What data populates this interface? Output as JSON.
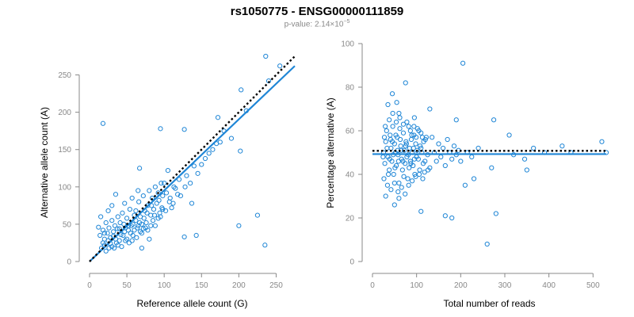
{
  "header": {
    "title": "rs1050775 - ENSG00000111859",
    "pvalue_prefix": "p-value: 2.14×10",
    "pvalue_exponent": "−5"
  },
  "colors": {
    "points": "#1f86d6",
    "fit": "#1f86d6",
    "reference": "#000000",
    "axes": "#888888"
  },
  "chart_data": [
    {
      "type": "scatter",
      "xlabel": "Reference allele count (G)",
      "ylabel": "Alternative allele count (A)",
      "xlim": [
        0,
        275
      ],
      "ylim": [
        0,
        275
      ],
      "xticks": [
        0,
        50,
        100,
        150,
        200,
        250
      ],
      "yticks": [
        0,
        50,
        100,
        150,
        200,
        250
      ],
      "fit_line": {
        "style": "solid",
        "x": [
          0,
          275
        ],
        "y": [
          0,
          262
        ]
      },
      "reference_line": {
        "style": "dotted",
        "x": [
          0,
          275
        ],
        "y": [
          0,
          275
        ]
      },
      "points": [
        [
          18,
          185
        ],
        [
          95,
          178
        ],
        [
          127,
          177
        ],
        [
          172,
          193
        ],
        [
          190,
          165
        ],
        [
          203,
          230
        ],
        [
          210,
          202
        ],
        [
          202,
          148
        ],
        [
          225,
          62
        ],
        [
          200,
          48
        ],
        [
          235,
          22
        ],
        [
          143,
          35
        ],
        [
          127,
          33
        ],
        [
          137,
          78
        ],
        [
          105,
          122
        ],
        [
          67,
          125
        ],
        [
          100,
          105
        ],
        [
          145,
          118
        ],
        [
          110,
          72
        ],
        [
          80,
          30
        ],
        [
          70,
          18
        ],
        [
          236,
          275
        ],
        [
          240,
          242
        ],
        [
          255,
          262
        ],
        [
          15,
          60
        ],
        [
          12,
          46
        ],
        [
          14,
          35
        ],
        [
          18,
          42
        ],
        [
          20,
          30
        ],
        [
          22,
          52
        ],
        [
          24,
          38
        ],
        [
          26,
          45
        ],
        [
          28,
          32
        ],
        [
          30,
          55
        ],
        [
          32,
          40
        ],
        [
          34,
          48
        ],
        [
          36,
          25
        ],
        [
          38,
          60
        ],
        [
          40,
          44
        ],
        [
          42,
          36
        ],
        [
          44,
          65
        ],
        [
          46,
          50
        ],
        [
          48,
          28
        ],
        [
          50,
          58
        ],
        [
          52,
          42
        ],
        [
          54,
          70
        ],
        [
          56,
          48
        ],
        [
          58,
          35
        ],
        [
          60,
          62
        ],
        [
          62,
          55
        ],
        [
          64,
          45
        ],
        [
          66,
          80
        ],
        [
          68,
          60
        ],
        [
          70,
          50
        ],
        [
          72,
          88
        ],
        [
          74,
          68
        ],
        [
          76,
          52
        ],
        [
          78,
          75
        ],
        [
          80,
          95
        ],
        [
          82,
          62
        ],
        [
          84,
          85
        ],
        [
          86,
          70
        ],
        [
          88,
          100
        ],
        [
          90,
          78
        ],
        [
          92,
          92
        ],
        [
          94,
          65
        ],
        [
          96,
          105
        ],
        [
          98,
          88
        ],
        [
          20,
          22
        ],
        [
          25,
          28
        ],
        [
          30,
          20
        ],
        [
          35,
          30
        ],
        [
          40,
          28
        ],
        [
          45,
          35
        ],
        [
          50,
          30
        ],
        [
          55,
          38
        ],
        [
          60,
          42
        ],
        [
          65,
          48
        ],
        [
          70,
          38
        ],
        [
          75,
          45
        ],
        [
          85,
          55
        ],
        [
          95,
          60
        ],
        [
          115,
          98
        ],
        [
          120,
          110
        ],
        [
          130,
          115
        ],
        [
          140,
          128
        ],
        [
          150,
          130
        ],
        [
          160,
          145
        ],
        [
          170,
          158
        ],
        [
          180,
          175
        ],
        [
          16,
          18
        ],
        [
          22,
          14
        ],
        [
          28,
          24
        ],
        [
          33,
          18
        ],
        [
          38,
          22
        ],
        [
          43,
          20
        ],
        [
          48,
          45
        ],
        [
          53,
          25
        ],
        [
          58,
          50
        ],
        [
          63,
          32
        ],
        [
          68,
          40
        ],
        [
          73,
          58
        ],
        [
          78,
          42
        ],
        [
          83,
          75
        ],
        [
          88,
          48
        ],
        [
          93,
          82
        ],
        [
          98,
          70
        ],
        [
          103,
          92
        ],
        [
          108,
          85
        ],
        [
          113,
          100
        ],
        [
          35,
          90
        ],
        [
          47,
          78
        ],
        [
          57,
          85
        ],
        [
          65,
          95
        ],
        [
          25,
          68
        ],
        [
          30,
          75
        ],
        [
          18,
          25
        ],
        [
          20,
          38
        ],
        [
          26,
          18
        ],
        [
          32,
          34
        ],
        [
          37,
          44
        ],
        [
          41,
          52
        ],
        [
          47,
          40
        ],
        [
          52,
          48
        ],
        [
          57,
          28
        ],
        [
          62,
          68
        ],
        [
          67,
          52
        ],
        [
          72,
          44
        ],
        [
          77,
          65
        ],
        [
          82,
          48
        ],
        [
          87,
          62
        ],
        [
          92,
          58
        ],
        [
          97,
          72
        ],
        [
          102,
          68
        ],
        [
          107,
          80
        ],
        [
          112,
          78
        ],
        [
          118,
          90
        ],
        [
          122,
          88
        ],
        [
          128,
          100
        ],
        [
          135,
          105
        ],
        [
          155,
          138
        ],
        [
          165,
          150
        ],
        [
          175,
          160
        ]
      ]
    },
    {
      "type": "scatter",
      "xlabel": "Total number of reads",
      "ylabel": "Percentage alternative (A)",
      "xlim": [
        0,
        530
      ],
      "ylim": [
        0,
        100
      ],
      "xticks": [
        0,
        100,
        200,
        300,
        400,
        500
      ],
      "yticks": [
        0,
        20,
        40,
        60,
        80,
        100
      ],
      "fit_line": {
        "style": "solid",
        "x": [
          0,
          530
        ],
        "y": [
          49.3,
          49.3
        ]
      },
      "reference_line": {
        "style": "dotted",
        "x": [
          0,
          530
        ],
        "y": [
          50.8,
          50.8
        ]
      },
      "points": [
        [
          205,
          91
        ],
        [
          75,
          82
        ],
        [
          45,
          77
        ],
        [
          35,
          72
        ],
        [
          55,
          73
        ],
        [
          130,
          70
        ],
        [
          275,
          65
        ],
        [
          190,
          65
        ],
        [
          60,
          68
        ],
        [
          95,
          66
        ],
        [
          310,
          58
        ],
        [
          50,
          26
        ],
        [
          60,
          29
        ],
        [
          110,
          23
        ],
        [
          165,
          21
        ],
        [
          180,
          20
        ],
        [
          210,
          35
        ],
        [
          230,
          38
        ],
        [
          260,
          8
        ],
        [
          280,
          22
        ],
        [
          270,
          43
        ],
        [
          350,
          42
        ],
        [
          365,
          52
        ],
        [
          390,
          50
        ],
        [
          430,
          53
        ],
        [
          450,
          50
        ],
        [
          520,
          55
        ],
        [
          530,
          50
        ],
        [
          345,
          47
        ],
        [
          320,
          49
        ],
        [
          25,
          50
        ],
        [
          28,
          45
        ],
        [
          30,
          55
        ],
        [
          32,
          60
        ],
        [
          35,
          48
        ],
        [
          38,
          42
        ],
        [
          40,
          58
        ],
        [
          42,
          52
        ],
        [
          44,
          46
        ],
        [
          46,
          62
        ],
        [
          48,
          40
        ],
        [
          50,
          54
        ],
        [
          52,
          50
        ],
        [
          54,
          44
        ],
        [
          56,
          57
        ],
        [
          58,
          49
        ],
        [
          60,
          36
        ],
        [
          62,
          61
        ],
        [
          64,
          53
        ],
        [
          66,
          47
        ],
        [
          68,
          42
        ],
        [
          70,
          59
        ],
        [
          72,
          51
        ],
        [
          74,
          45
        ],
        [
          76,
          55
        ],
        [
          78,
          48
        ],
        [
          80,
          38
        ],
        [
          82,
          62
        ],
        [
          84,
          52
        ],
        [
          86,
          46
        ],
        [
          88,
          56
        ],
        [
          90,
          50
        ],
        [
          92,
          44
        ],
        [
          94,
          58
        ],
        [
          96,
          40
        ],
        [
          98,
          54
        ],
        [
          100,
          48
        ],
        [
          105,
          60
        ],
        [
          110,
          52
        ],
        [
          115,
          45
        ],
        [
          120,
          56
        ],
        [
          125,
          49
        ],
        [
          130,
          43
        ],
        [
          135,
          57
        ],
        [
          140,
          50
        ],
        [
          145,
          46
        ],
        [
          150,
          54
        ],
        [
          155,
          48
        ],
        [
          160,
          52
        ],
        [
          165,
          44
        ],
        [
          170,
          56
        ],
        [
          175,
          50
        ],
        [
          180,
          47
        ],
        [
          185,
          53
        ],
        [
          190,
          49
        ],
        [
          195,
          51
        ],
        [
          200,
          46
        ],
        [
          215,
          50
        ],
        [
          225,
          48
        ],
        [
          240,
          52
        ],
        [
          26,
          38
        ],
        [
          30,
          30
        ],
        [
          34,
          35
        ],
        [
          38,
          65
        ],
        [
          42,
          33
        ],
        [
          46,
          68
        ],
        [
          50,
          36
        ],
        [
          54,
          64
        ],
        [
          58,
          32
        ],
        [
          62,
          66
        ],
        [
          66,
          34
        ],
        [
          70,
          63
        ],
        [
          74,
          31
        ],
        [
          78,
          64
        ],
        [
          82,
          35
        ],
        [
          86,
          60
        ],
        [
          90,
          37
        ],
        [
          94,
          62
        ],
        [
          98,
          39
        ],
        [
          102,
          61
        ],
        [
          106,
          40
        ],
        [
          110,
          59
        ],
        [
          114,
          38
        ],
        [
          118,
          41
        ],
        [
          122,
          57
        ],
        [
          126,
          42
        ],
        [
          27,
          57
        ],
        [
          33,
          52
        ],
        [
          39,
          47
        ],
        [
          45,
          55
        ],
        [
          51,
          43
        ],
        [
          57,
          51
        ],
        [
          63,
          56
        ],
        [
          69,
          46
        ],
        [
          75,
          53
        ],
        [
          81,
          49
        ],
        [
          87,
          45
        ],
        [
          93,
          52
        ],
        [
          99,
          57
        ],
        [
          104,
          47
        ],
        [
          108,
          53
        ],
        [
          112,
          50
        ],
        [
          116,
          55
        ],
        [
          24,
          48
        ],
        [
          29,
          62
        ],
        [
          36,
          40
        ],
        [
          41,
          56
        ],
        [
          47,
          49
        ],
        [
          53,
          58
        ],
        [
          59,
          46
        ],
        [
          65,
          51
        ],
        [
          71,
          39
        ],
        [
          77,
          54
        ],
        [
          83,
          43
        ],
        [
          89,
          58
        ],
        [
          95,
          47
        ],
        [
          101,
          51
        ],
        [
          107,
          42
        ],
        [
          113,
          57
        ],
        [
          119,
          46
        ]
      ]
    }
  ]
}
